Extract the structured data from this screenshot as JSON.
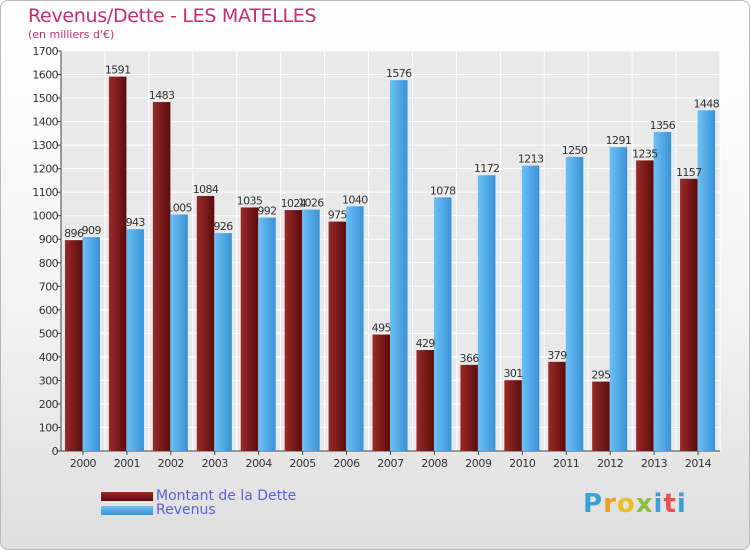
{
  "title": "Revenus/Dette - LES MATELLES",
  "subtitle": "(en milliers d'€)",
  "logo": {
    "letters": [
      "P",
      "r",
      "o",
      "x",
      "i",
      "t",
      "i"
    ],
    "colors": [
      "#3aa0d8",
      "#f0a020",
      "#e8c020",
      "#8cc040",
      "#3aa0d8",
      "#e85050",
      "#3aa0d8"
    ]
  },
  "chart_data": {
    "type": "bar",
    "categories": [
      "2000",
      "2001",
      "2002",
      "2003",
      "2004",
      "2005",
      "2006",
      "2007",
      "2008",
      "2009",
      "2010",
      "2011",
      "2012",
      "2013",
      "2014"
    ],
    "series": [
      {
        "name": "Montant de la Dette",
        "color": "#7a1a1a",
        "values": [
          896,
          1591,
          1483,
          1084,
          1035,
          1024,
          975,
          495,
          429,
          366,
          301,
          379,
          295,
          1235,
          1157
        ],
        "labels": [
          "896",
          "1591",
          "1483",
          "1084",
          "1035",
          "1024",
          "975",
          "495",
          "429",
          "366",
          "301",
          "379",
          "295",
          "1235",
          "1157"
        ]
      },
      {
        "name": "Revenus",
        "color": "#4aa8e8",
        "values": [
          909,
          943,
          1005,
          926,
          992,
          1026,
          1040,
          1576,
          1078,
          1172,
          1213,
          1250,
          1291,
          1356,
          1448
        ],
        "labels": [
          "909",
          "943",
          "1005",
          "926",
          "992",
          "1026",
          "1040",
          "1576",
          "1078",
          "1172",
          "1213",
          "1250",
          "1291",
          "1356",
          "1448"
        ]
      }
    ],
    "ylim": [
      0,
      1700
    ],
    "yticks": [
      "0",
      "100",
      "200",
      "300",
      "400",
      "500",
      "600",
      "700",
      "800",
      "900",
      "1000",
      "1100",
      "1200",
      "1300",
      "1400",
      "1500",
      "1600",
      "1700"
    ],
    "grid": true,
    "legend_position": "bottom-left"
  }
}
